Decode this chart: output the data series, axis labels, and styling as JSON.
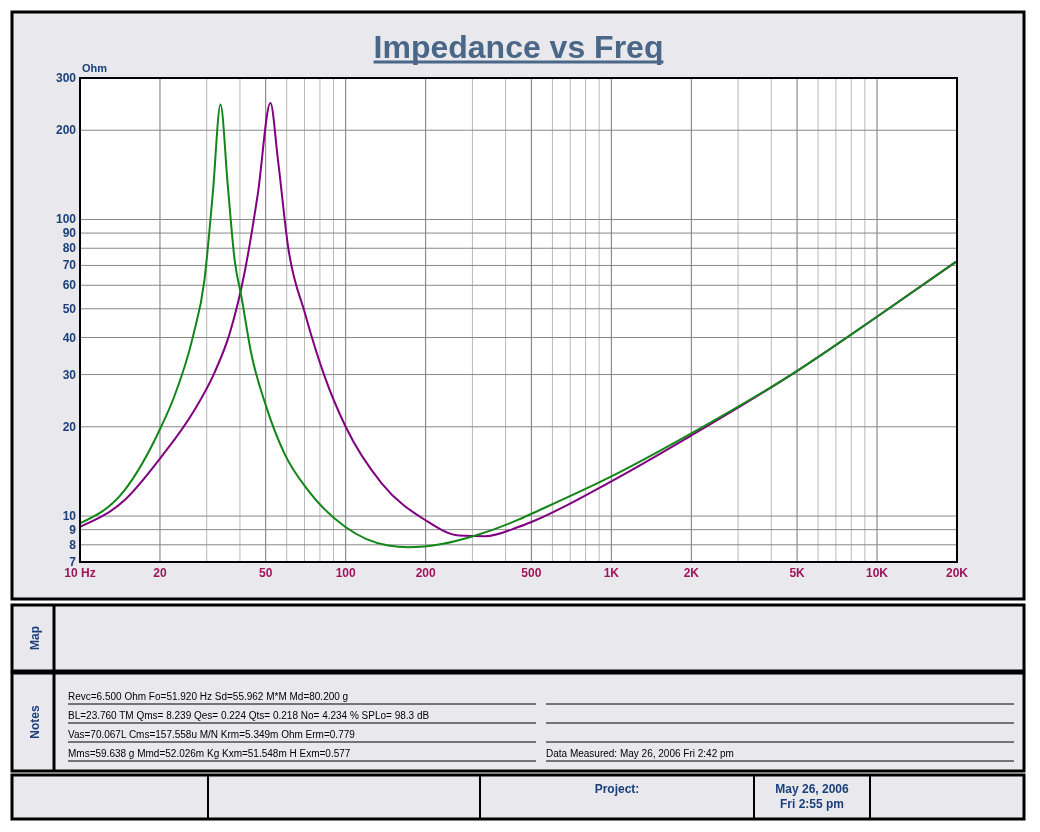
{
  "chart_data": {
    "type": "line",
    "title": "Impedance vs Freq",
    "ylabel": "Ohm",
    "log": "xy",
    "grid": true,
    "line_style": "solid",
    "marker": "none",
    "xlim": [
      10,
      20000
    ],
    "ylim": [
      7,
      300
    ],
    "xticks": [
      {
        "value": 10,
        "label": "10  Hz"
      },
      20,
      {
        "value": 30,
        "label": null
      },
      {
        "value": 40,
        "label": null
      },
      50,
      {
        "value": 60,
        "label": null
      },
      {
        "value": 70,
        "label": null
      },
      {
        "value": 80,
        "label": null
      },
      {
        "value": 90,
        "label": null
      },
      100,
      200,
      {
        "value": 300,
        "label": null
      },
      {
        "value": 400,
        "label": null
      },
      500,
      {
        "value": 600,
        "label": null
      },
      {
        "value": 700,
        "label": null
      },
      {
        "value": 800,
        "label": null
      },
      {
        "value": 900,
        "label": null
      },
      {
        "value": 1000,
        "label": "1K"
      },
      {
        "value": 2000,
        "label": "2K"
      },
      {
        "value": 3000,
        "label": null
      },
      {
        "value": 4000,
        "label": null
      },
      {
        "value": 5000,
        "label": "5K"
      },
      {
        "value": 6000,
        "label": null
      },
      {
        "value": 7000,
        "label": null
      },
      {
        "value": 8000,
        "label": null
      },
      {
        "value": 9000,
        "label": null
      },
      {
        "value": 10000,
        "label": "10K"
      },
      {
        "value": 20000,
        "label": "20K"
      }
    ],
    "yticks": [
      7,
      8,
      9,
      10,
      20,
      30,
      40,
      50,
      60,
      70,
      80,
      90,
      100,
      200,
      300
    ],
    "series": [
      {
        "color": "#800080",
        "x": [
          10,
          14.7,
          20.2,
          26.9,
          32,
          36.6,
          41.6,
          46.7,
          52.1,
          55.6,
          60.7,
          70.3,
          83.5,
          100,
          136.6,
          199,
          266.6,
          335,
          449,
          503,
          1000,
          2000,
          4960,
          10000,
          19800
        ],
        "values": [
          9.2,
          11.3,
          15.8,
          22.7,
          30.3,
          41.3,
          66,
          122,
          247,
          159,
          81,
          48.2,
          29.4,
          20,
          12.9,
          9.7,
          8.6,
          8.55,
          9.2,
          9.57,
          13.1,
          18.7,
          30.7,
          47,
          72
        ]
      },
      {
        "color": "#13861a",
        "x": [
          10,
          14.7,
          20.2,
          22.6,
          26.6,
          29.4,
          31.6,
          33.8,
          36,
          38.2,
          40.5,
          44.1,
          50.3,
          58.9,
          72.2,
          99.5,
          144.7,
          172,
          230,
          308,
          449,
          503,
          1000,
          2000,
          4960,
          10000,
          19800
        ],
        "values": [
          9.45,
          12.2,
          20,
          25.2,
          40.2,
          62.5,
          122,
          244,
          130,
          73,
          55,
          35.4,
          23.3,
          16.2,
          12.2,
          9.2,
          7.95,
          7.85,
          8.05,
          8.6,
          9.74,
          10.2,
          13.6,
          19,
          30.7,
          47,
          72
        ]
      }
    ],
    "annotations": [
      "Map",
      "Notes",
      "Revc=6.500 Ohm  Fo=51.920 Hz  Sd=55.962   M*M    Md=80.200 g",
      "BL=23.760 TM    Qms= 8.239  Qes= 0.224  Qts= 0.218  No= 4.234 %  SPLo= 98.3 dB",
      "Vas=70.067L     Cms=157.558u M/N  Krm=5.349m Ohm  Erm=0.779",
      "Mms=59.638 g  Mmd=52.026m Kg  Kxm=51.548m H  Exm=0.577",
      "Data Measured: May 26, 2006  Fri  2:42 pm",
      "Project:",
      "May 26, 2006",
      "Fri  2:55 pm"
    ]
  }
}
